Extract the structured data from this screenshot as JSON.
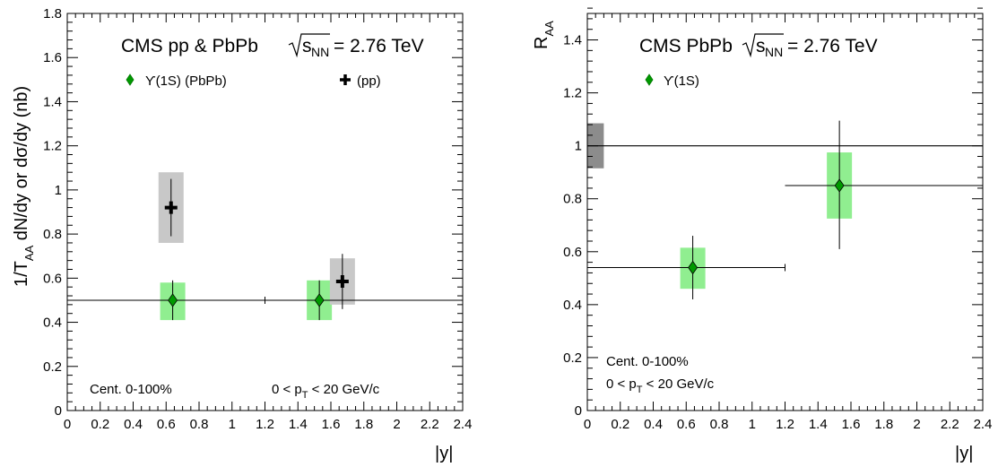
{
  "chart_data": [
    {
      "type": "scatter",
      "title_text": "CMS pp & PbPb",
      "energy_text": "= 2.76 TeV",
      "energy_sub": "NN",
      "energy_s": "s",
      "xlabel": "|y|",
      "ylabel": "1/T_AA dN/dy  or  dσ/dy (nb)",
      "ylabel_parts": [
        "1/T",
        "AA",
        " dN/dy  or  dσ/dy (nb)"
      ],
      "xlim": [
        0,
        2.4
      ],
      "ylim": [
        0,
        1.8
      ],
      "xticks": [
        "0",
        "0.2",
        "0.4",
        "0.6",
        "0.8",
        "1",
        "1.2",
        "1.4",
        "1.6",
        "1.8",
        "2",
        "2.2",
        "2.4"
      ],
      "yticks": [
        "0",
        "0.2",
        "0.4",
        "0.6",
        "0.8",
        "1",
        "1.2",
        "1.4",
        "1.6",
        "1.8"
      ],
      "legend": [
        {
          "label": "ϒ(1S) (PbPb)",
          "marker": "diamond",
          "color": "#009900"
        },
        {
          "label": "(pp)",
          "marker": "cross",
          "color": "#000000"
        }
      ],
      "annotations": {
        "centrality": "Cent. 0-100%",
        "pt_range_parts": [
          "0 < p",
          "T",
          " < 20 GeV/c"
        ]
      },
      "series": [
        {
          "name": "ϒ(1S) (PbPb)",
          "marker": "diamond",
          "points": [
            {
              "x": 0.64,
              "y": 0.5,
              "xerr": [
                0.0,
                1.2
              ],
              "yerr": [
                0.41,
                0.59
              ],
              "syst": [
                0.41,
                0.58
              ]
            },
            {
              "x": 1.53,
              "y": 0.5,
              "xerr": [
                1.2,
                2.4
              ],
              "yerr": [
                0.41,
                0.59
              ],
              "syst": [
                0.41,
                0.59
              ]
            }
          ]
        },
        {
          "name": "(pp)",
          "marker": "cross",
          "points": [
            {
              "x": 0.63,
              "y": 0.92,
              "yerr": [
                0.79,
                1.05
              ],
              "syst": [
                0.76,
                1.08
              ]
            },
            {
              "x": 1.67,
              "y": 0.585,
              "yerr": [
                0.46,
                0.71
              ],
              "syst": [
                0.48,
                0.69
              ]
            }
          ]
        }
      ],
      "colors": {
        "pbpb_syst": "#90ee90",
        "pp_syst": "#c8c8c8",
        "marker": "#009900"
      }
    },
    {
      "type": "scatter",
      "title_text": "CMS PbPb",
      "energy_text": "= 2.76 TeV",
      "energy_sub": "NN",
      "energy_s": "s",
      "xlabel": "|y|",
      "ylabel_parts": [
        "R",
        "AA"
      ],
      "xlim": [
        0,
        2.4
      ],
      "ylim": [
        0,
        1.5
      ],
      "xticks": [
        "0",
        "0.2",
        "0.4",
        "0.6",
        "0.8",
        "1",
        "1.2",
        "1.4",
        "1.6",
        "1.8",
        "2",
        "2.2",
        "2.4"
      ],
      "yticks": [
        "0",
        "0.2",
        "0.4",
        "0.6",
        "0.8",
        "1",
        "1.2",
        "1.4"
      ],
      "legend": [
        {
          "label": "ϒ(1S)",
          "marker": "diamond",
          "color": "#009900"
        }
      ],
      "annotations": {
        "centrality": "Cent. 0-100%",
        "pt_range_parts": [
          "0 < p",
          "T",
          " < 20 GeV/c"
        ]
      },
      "reference_line": 1.0,
      "global_uncertainty_box": {
        "x": [
          0,
          0.1
        ],
        "y": [
          0.915,
          1.085
        ]
      },
      "series": [
        {
          "name": "ϒ(1S)",
          "marker": "diamond",
          "points": [
            {
              "x": 0.64,
              "y": 0.54,
              "xerr": [
                0.0,
                1.2
              ],
              "yerr": [
                0.42,
                0.66
              ],
              "syst": [
                0.46,
                0.615
              ]
            },
            {
              "x": 1.53,
              "y": 0.85,
              "xerr": [
                1.2,
                2.4
              ],
              "yerr": [
                0.61,
                1.095
              ],
              "syst": [
                0.725,
                0.975
              ]
            }
          ]
        }
      ],
      "colors": {
        "syst": "#90ee90",
        "global": "#8c8c8c",
        "marker": "#009900"
      }
    }
  ]
}
